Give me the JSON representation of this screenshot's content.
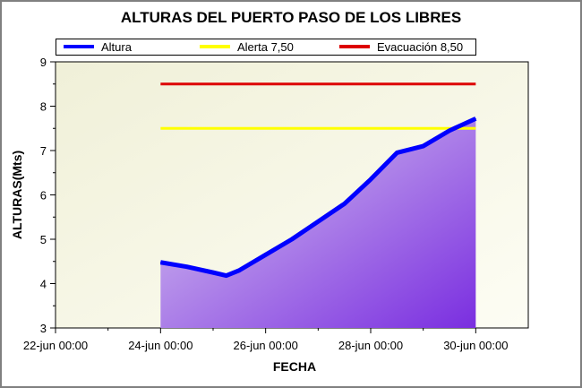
{
  "chart_data": {
    "type": "line",
    "title": "ALTURAS DEL PUERTO PASO DE LOS LIBRES",
    "xlabel": "FECHA",
    "ylabel": "ALTURAS(Mts)",
    "ylim": [
      3,
      9
    ],
    "yticks": [
      3,
      4,
      5,
      6,
      7,
      8,
      9
    ],
    "xlim": [
      "2024-06-22 00:00",
      "2024-07-01 00:00"
    ],
    "xtick_labels": [
      "22-jun 00:00",
      "24-jun 00:00",
      "26-jun 00:00",
      "28-jun 00:00",
      "30-jun 00:00"
    ],
    "xtick_dates": [
      "2024-06-22 00:00",
      "2024-06-24 00:00",
      "2024-06-26 00:00",
      "2024-06-28 00:00",
      "2024-06-30 00:00"
    ],
    "grid": false,
    "legend_position": "top",
    "series": [
      {
        "name": "Altura",
        "color": "#0000ff",
        "fill": "area",
        "points": [
          {
            "x": "2024-06-24 00:00",
            "y": 4.48
          },
          {
            "x": "2024-06-24 12:00",
            "y": 4.38
          },
          {
            "x": "2024-06-25 00:00",
            "y": 4.25
          },
          {
            "x": "2024-06-25 06:00",
            "y": 4.18
          },
          {
            "x": "2024-06-25 12:00",
            "y": 4.3
          },
          {
            "x": "2024-06-26 00:00",
            "y": 4.65
          },
          {
            "x": "2024-06-26 12:00",
            "y": 5.0
          },
          {
            "x": "2024-06-27 00:00",
            "y": 5.4
          },
          {
            "x": "2024-06-27 12:00",
            "y": 5.8
          },
          {
            "x": "2024-06-28 00:00",
            "y": 6.35
          },
          {
            "x": "2024-06-28 12:00",
            "y": 6.95
          },
          {
            "x": "2024-06-29 00:00",
            "y": 7.1
          },
          {
            "x": "2024-06-29 12:00",
            "y": 7.45
          },
          {
            "x": "2024-06-30 00:00",
            "y": 7.72
          }
        ]
      },
      {
        "name": "Alerta 7,50",
        "color": "#ffff00",
        "points": [
          {
            "x": "2024-06-24 00:00",
            "y": 7.5
          },
          {
            "x": "2024-06-30 00:00",
            "y": 7.5
          }
        ]
      },
      {
        "name": "Evacuación 8,50",
        "color": "#dd0000",
        "points": [
          {
            "x": "2024-06-24 00:00",
            "y": 8.5
          },
          {
            "x": "2024-06-30 00:00",
            "y": 8.5
          }
        ]
      }
    ]
  }
}
